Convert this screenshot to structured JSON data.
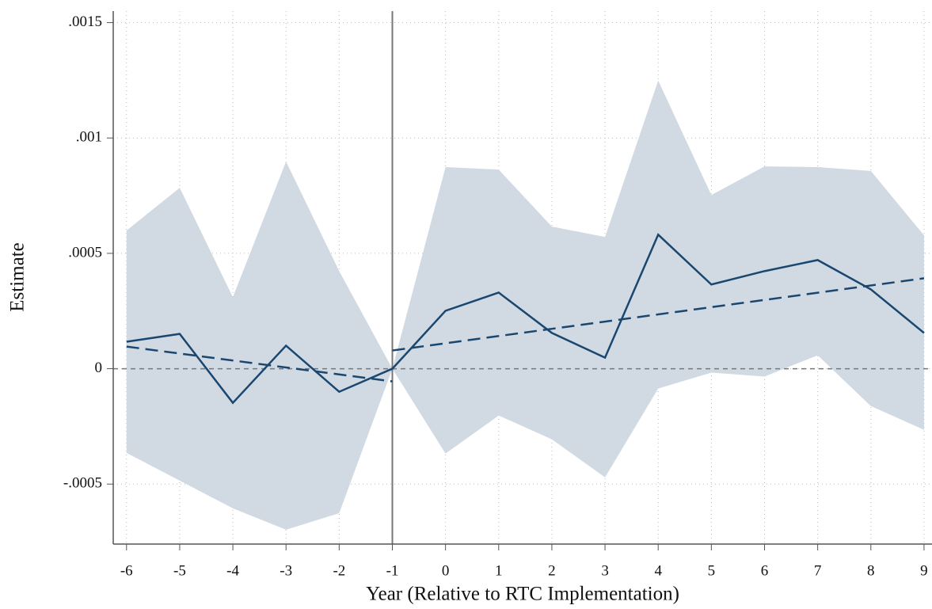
{
  "chart_data": {
    "type": "line",
    "x_label": "Year (Relative to RTC Implementation)",
    "y_label": "Estimate",
    "x": [
      -6,
      -5,
      -4,
      -3,
      -2,
      -1,
      0,
      1,
      2,
      3,
      4,
      5,
      6,
      7,
      8,
      9
    ],
    "series": [
      {
        "color": "#1a476f",
        "values": [
          0.000117,
          0.000151,
          -0.000148,
          0.0001,
          -0.0001,
          0,
          0.000251,
          0.00033,
          0.000155,
          4.8e-05,
          0.000581,
          0.000365,
          0.000423,
          0.000471,
          0.000344,
          0.000155
        ]
      }
    ],
    "band": {
      "color": "#d1dae3",
      "upper": [
        0.000599,
        0.000784,
        0.00031,
        0.000898,
        0.000423,
        0,
        0.000874,
        0.000863,
        0.000616,
        0.000571,
        0.001249,
        0.000753,
        0.000877,
        0.000874,
        0.000857,
        0.000578
      ],
      "lower": [
        -0.000365,
        -0.000485,
        -0.000605,
        -0.000698,
        -0.000626,
        0,
        -0.000368,
        -0.000203,
        -0.000306,
        -0.000471,
        -8.6e-05,
        -1.7e-05,
        -3.4e-05,
        5.8e-05,
        -0.000162,
        -0.000265
      ]
    },
    "trends": [
      {
        "color": "#1a476f",
        "x": [
          -6,
          -1
        ],
        "values": [
          9.6e-05,
          -5.5e-05
        ]
      },
      {
        "color": "#1a476f",
        "x": [
          -1,
          9
        ],
        "values": [
          7.9e-05,
          0.000392
        ]
      }
    ],
    "vline": -1,
    "hline": 0,
    "xlim": [
      -6.25,
      9.15
    ],
    "ylim": [
      -0.00076,
      0.00155
    ],
    "xticks": [
      -6,
      -5,
      -4,
      -3,
      -2,
      -1,
      0,
      1,
      2,
      3,
      4,
      5,
      6,
      7,
      8,
      9
    ],
    "yticks": [
      {
        "value": -0.0005,
        "label": "-.0005"
      },
      0,
      {
        "value": 0.0005,
        "label": ".0005"
      },
      {
        "value": 0.001,
        "label": ".001"
      },
      {
        "value": 0.0015,
        "label": ".0015"
      }
    ],
    "grid": true
  }
}
